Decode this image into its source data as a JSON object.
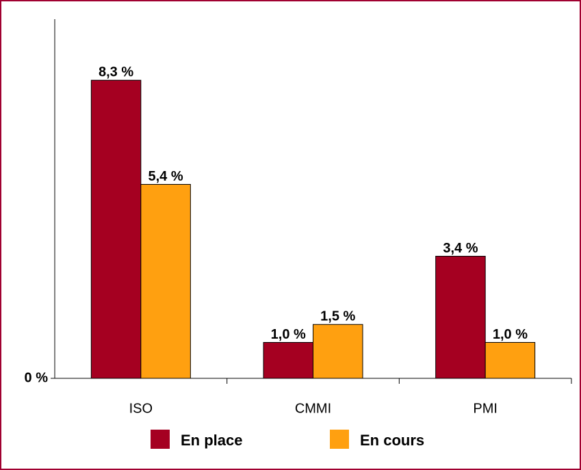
{
  "chart_data": {
    "type": "bar",
    "categories": [
      "ISO",
      "CMMI",
      "PMI"
    ],
    "series": [
      {
        "name": "En place",
        "color": "#a50021",
        "values": [
          8.3,
          1.0,
          3.4
        ],
        "value_labels": [
          "8,3 %",
          "1,0 %",
          "3,4 %"
        ]
      },
      {
        "name": "En cours",
        "color": "#ffa010",
        "values": [
          5.4,
          1.5,
          1.0
        ],
        "value_labels": [
          "5,4 %",
          "1,5 %",
          "1,0 %"
        ]
      }
    ],
    "ylim": [
      0,
      10
    ],
    "yticks": [
      {
        "value": 0,
        "label": "0 %"
      }
    ],
    "grid": false,
    "legend": "bottom"
  }
}
